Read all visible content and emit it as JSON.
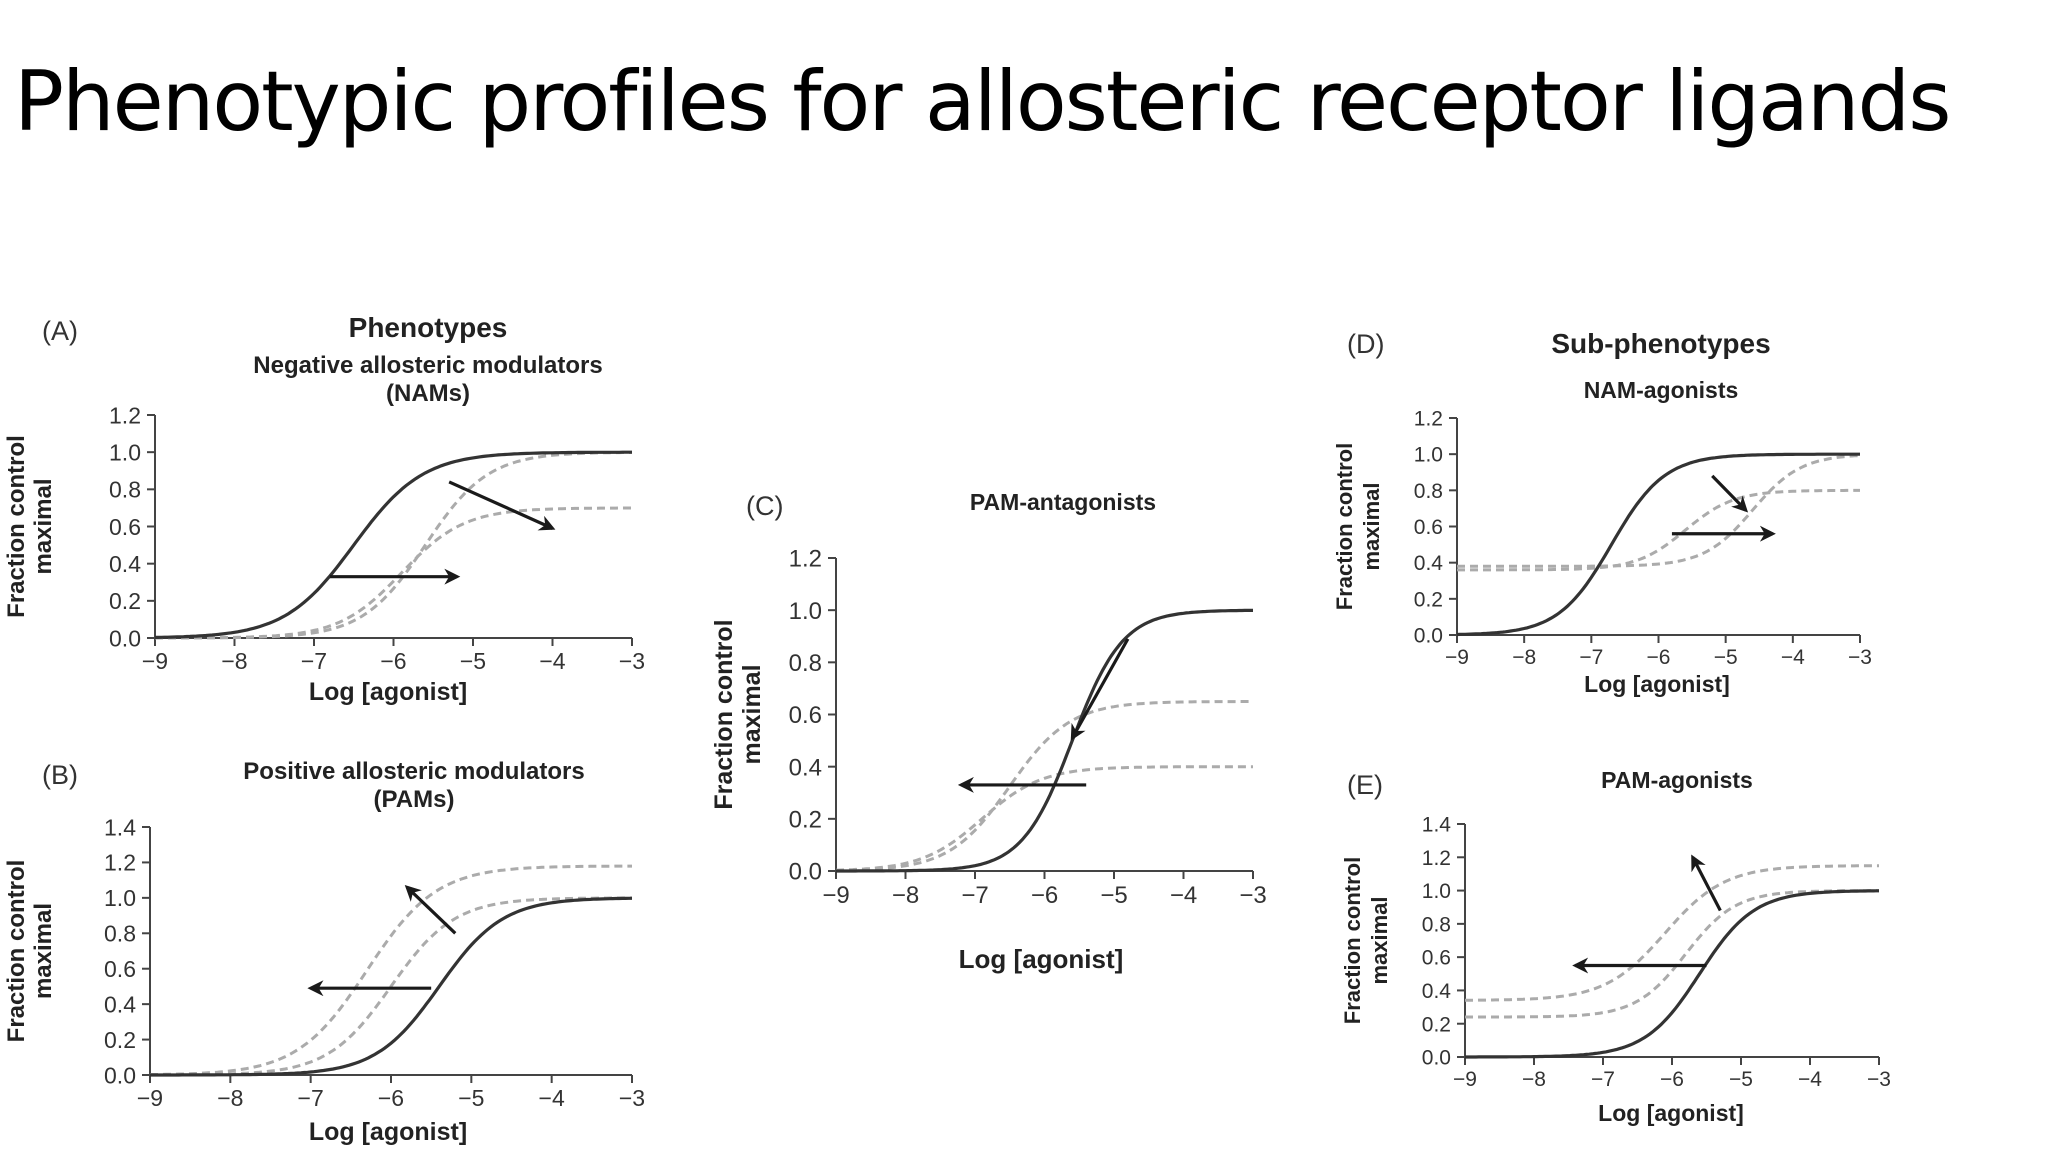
{
  "slide": {
    "title": "Phenotypic profiles for allosteric receptor ligands"
  },
  "figure": {
    "heading_phenotypes": "Phenotypes",
    "heading_subphenotypes": "Sub-phenotypes"
  },
  "chart_data": [
    {
      "id": "A",
      "type": "line",
      "letter": "(A)",
      "title": "Negative allosteric modulators",
      "subtitle": "(NAMs)",
      "xlabel": "Log [agonist]",
      "ylabel": "Fraction control",
      "ylabel2": "maximal",
      "xlim": [
        -9,
        -3
      ],
      "ylim": [
        0,
        1.2
      ],
      "xticks": [
        -9,
        -8,
        -7,
        -6,
        -5,
        -4,
        -3
      ],
      "xtick_labels": [
        "−9",
        "−8",
        "−7",
        "−6",
        "−5",
        "−4",
        "−3"
      ],
      "yticks": [
        0,
        0.2,
        0.4,
        0.6,
        0.8,
        1.0,
        1.2
      ],
      "ytick_labels": [
        "0.0",
        "0.2",
        "0.4",
        "0.6",
        "0.8",
        "1.0",
        "1.2"
      ],
      "series": [
        {
          "style": "solid",
          "bottom": 0,
          "top": 1.0,
          "logEC50": -6.5,
          "hill": 1
        },
        {
          "style": "dashed",
          "bottom": 0,
          "top": 1.0,
          "logEC50": -5.6,
          "hill": 1.1
        },
        {
          "style": "dashed",
          "bottom": 0,
          "top": 0.7,
          "logEC50": -5.9,
          "hill": 1.1
        }
      ],
      "arrows": [
        {
          "from": [
            -5.3,
            0.84
          ],
          "to": [
            -4.0,
            0.59
          ]
        },
        {
          "from": [
            -6.8,
            0.33
          ],
          "to": [
            -5.2,
            0.33
          ]
        }
      ]
    },
    {
      "id": "B",
      "type": "line",
      "letter": "(B)",
      "title": "Positive allosteric modulators",
      "subtitle": "(PAMs)",
      "xlabel": "Log [agonist]",
      "ylabel": "Fraction control",
      "ylabel2": "maximal",
      "xlim": [
        -9,
        -3
      ],
      "ylim": [
        0,
        1.4
      ],
      "xticks": [
        -9,
        -8,
        -7,
        -6,
        -5,
        -4,
        -3
      ],
      "xtick_labels": [
        "−9",
        "−8",
        "−7",
        "−6",
        "−5",
        "−4",
        "−3"
      ],
      "yticks": [
        0,
        0.2,
        0.4,
        0.6,
        0.8,
        1.0,
        1.2,
        1.4
      ],
      "ytick_labels": [
        "0.0",
        "0.2",
        "0.4",
        "0.6",
        "0.8",
        "1.0",
        "1.2",
        "1.4"
      ],
      "series": [
        {
          "style": "solid",
          "bottom": 0,
          "top": 1.0,
          "logEC50": -5.4,
          "hill": 1.1
        },
        {
          "style": "dashed",
          "bottom": 0,
          "top": 1.18,
          "logEC50": -6.3,
          "hill": 1
        },
        {
          "style": "dashed",
          "bottom": 0,
          "top": 1.0,
          "logEC50": -6.0,
          "hill": 1.1
        }
      ],
      "arrows": [
        {
          "from": [
            -5.2,
            0.8
          ],
          "to": [
            -5.8,
            1.06
          ]
        },
        {
          "from": [
            -5.5,
            0.49
          ],
          "to": [
            -7.0,
            0.49
          ]
        }
      ]
    },
    {
      "id": "C",
      "type": "line",
      "letter": "(C)",
      "title": "PAM-antagonists",
      "subtitle": "",
      "xlabel": "Log [agonist]",
      "ylabel": "Fraction control",
      "ylabel2": "maximal",
      "xlim": [
        -9,
        -3
      ],
      "ylim": [
        0,
        1.2
      ],
      "xticks": [
        -9,
        -8,
        -7,
        -6,
        -5,
        -4,
        -3
      ],
      "xtick_labels": [
        "−9",
        "−8",
        "−7",
        "−6",
        "−5",
        "−4",
        "−3"
      ],
      "yticks": [
        0,
        0.2,
        0.4,
        0.6,
        0.8,
        1.0,
        1.2
      ],
      "ytick_labels": [
        "0.0",
        "0.2",
        "0.4",
        "0.6",
        "0.8",
        "1.0",
        "1.2"
      ],
      "series": [
        {
          "style": "solid",
          "bottom": 0,
          "top": 1.0,
          "logEC50": -5.6,
          "hill": 1.2
        },
        {
          "style": "dashed",
          "bottom": 0,
          "top": 0.65,
          "logEC50": -6.5,
          "hill": 1
        },
        {
          "style": "dashed",
          "bottom": 0,
          "top": 0.4,
          "logEC50": -6.9,
          "hill": 1
        }
      ],
      "arrows": [
        {
          "from": [
            -4.8,
            0.89
          ],
          "to": [
            -5.6,
            0.51
          ]
        },
        {
          "from": [
            -5.4,
            0.33
          ],
          "to": [
            -7.2,
            0.33
          ]
        }
      ]
    },
    {
      "id": "D",
      "type": "line",
      "letter": "(D)",
      "title": "NAM-agonists",
      "subtitle": "",
      "xlabel": "Log [agonist]",
      "ylabel": "Fraction control",
      "ylabel2": "maximal",
      "xlim": [
        -9,
        -3
      ],
      "ylim": [
        0,
        1.2
      ],
      "xticks": [
        -9,
        -8,
        -7,
        -6,
        -5,
        -4,
        -3
      ],
      "xtick_labels": [
        "−9",
        "−8",
        "−7",
        "−6",
        "−5",
        "−4",
        "−3"
      ],
      "yticks": [
        0,
        0.2,
        0.4,
        0.6,
        0.8,
        1.0,
        1.2
      ],
      "ytick_labels": [
        "0.0",
        "0.2",
        "0.4",
        "0.6",
        "0.8",
        "1.0",
        "1.2"
      ],
      "series": [
        {
          "style": "solid",
          "bottom": 0,
          "top": 1.0,
          "logEC50": -6.7,
          "hill": 1.1
        },
        {
          "style": "dashed",
          "bottom": 0.38,
          "top": 1.0,
          "logEC50": -4.6,
          "hill": 1.2
        },
        {
          "style": "dashed",
          "bottom": 0.36,
          "top": 0.8,
          "logEC50": -5.6,
          "hill": 1.2
        }
      ],
      "arrows": [
        {
          "from": [
            -5.2,
            0.88
          ],
          "to": [
            -4.7,
            0.69
          ]
        },
        {
          "from": [
            -5.8,
            0.56
          ],
          "to": [
            -4.3,
            0.56
          ]
        }
      ]
    },
    {
      "id": "E",
      "type": "line",
      "letter": "(E)",
      "title": "PAM-agonists",
      "subtitle": "",
      "xlabel": "Log [agonist]",
      "ylabel": "Fraction control",
      "ylabel2": "maximal",
      "xlim": [
        -9,
        -3
      ],
      "ylim": [
        0,
        1.4
      ],
      "xticks": [
        -9,
        -8,
        -7,
        -6,
        -5,
        -4,
        -3
      ],
      "xtick_labels": [
        "−9",
        "−8",
        "−7",
        "−6",
        "−5",
        "−4",
        "−3"
      ],
      "yticks": [
        0,
        0.2,
        0.4,
        0.6,
        0.8,
        1.0,
        1.2,
        1.4
      ],
      "ytick_labels": [
        "0.0",
        "0.2",
        "0.4",
        "0.6",
        "0.8",
        "1.0",
        "1.2",
        "1.4"
      ],
      "series": [
        {
          "style": "solid",
          "bottom": 0,
          "top": 1.0,
          "logEC50": -5.6,
          "hill": 1.1
        },
        {
          "style": "dashed",
          "bottom": 0.34,
          "top": 1.15,
          "logEC50": -6.1,
          "hill": 1.0
        },
        {
          "style": "dashed",
          "bottom": 0.24,
          "top": 1.0,
          "logEC50": -5.8,
          "hill": 1.2
        }
      ],
      "arrows": [
        {
          "from": [
            -5.3,
            0.88
          ],
          "to": [
            -5.7,
            1.2
          ]
        },
        {
          "from": [
            -5.5,
            0.55
          ],
          "to": [
            -7.4,
            0.55
          ]
        }
      ]
    }
  ],
  "colors": {
    "solid": "#333333",
    "dashed": "#ababab",
    "arrow": "#1a1a1a",
    "axis": "#444444"
  }
}
